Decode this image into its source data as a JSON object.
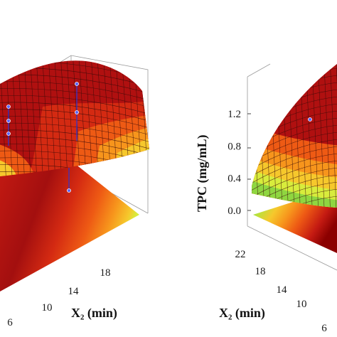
{
  "chart_data": [
    {
      "type": "surface3d",
      "panel": "left",
      "xlabel": "X₂ (min)",
      "x_ticks": [
        "6",
        "10",
        "14",
        "18"
      ],
      "colors": [
        "#8b0000",
        "#b01010",
        "#d42a12",
        "#ee5a14",
        "#f7951c",
        "#f6c82c",
        "#d8ec3c",
        "#8fd640",
        "#3fb838"
      ]
    },
    {
      "type": "surface3d",
      "panel": "right",
      "zlabel": "TPC (mg/mL)",
      "z_ticks": [
        "0.0",
        "0.4",
        "0.8",
        "1.2"
      ],
      "zlim": [
        0.0,
        1.2
      ],
      "xlabel": "X₂ (min)",
      "x_ticks": [
        "6",
        "10",
        "14",
        "18",
        "22"
      ],
      "colors": [
        "#8b0000",
        "#b01010",
        "#d42a12",
        "#ee5a14",
        "#f7951c",
        "#f6c82c",
        "#d8ec3c",
        "#8fd640",
        "#3fb838"
      ]
    }
  ]
}
